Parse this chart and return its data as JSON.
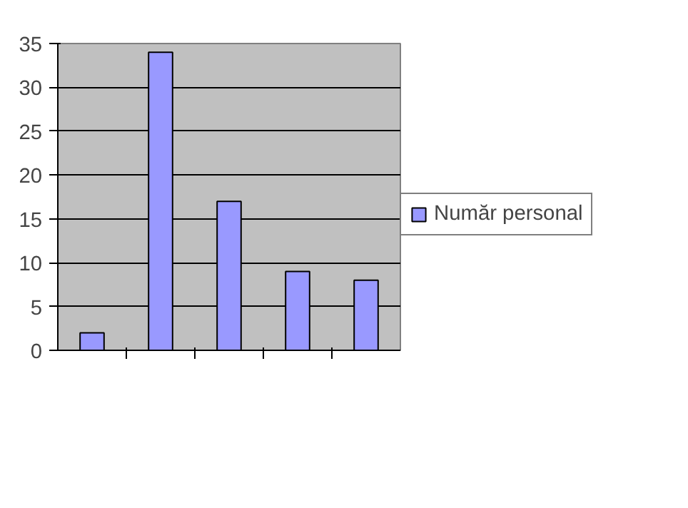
{
  "chart_data": {
    "type": "bar",
    "categories": [
      null,
      null,
      null,
      null,
      null
    ],
    "series": [
      {
        "name": "Număr personal",
        "color": "#9999ff",
        "values": [
          2,
          34,
          17,
          9,
          8
        ]
      }
    ],
    "ylim": [
      0,
      35
    ],
    "yticks": [
      0,
      5,
      10,
      15,
      20,
      25,
      30,
      35
    ],
    "grid": "y",
    "legend": "right"
  }
}
